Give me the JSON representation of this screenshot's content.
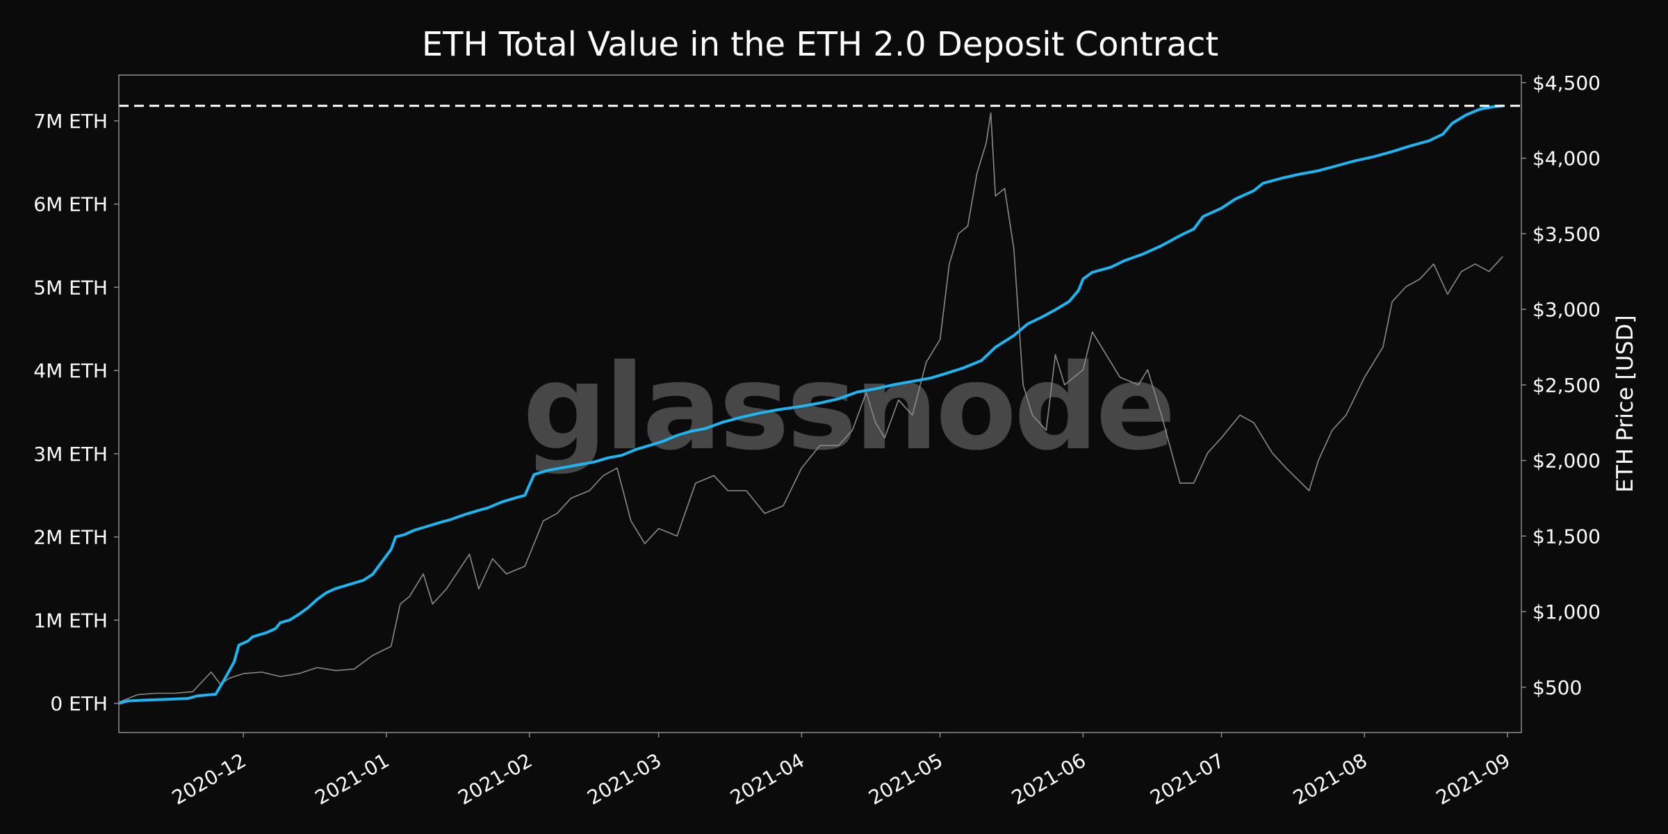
{
  "chart_data": {
    "type": "line",
    "title": "ETH Total Value in the ETH 2.0 Deposit Contract",
    "watermark": "glassnode",
    "x_ticks": [
      "2020-12",
      "2021-01",
      "2021-02",
      "2021-03",
      "2021-04",
      "2021-05",
      "2021-06",
      "2021-07",
      "2021-08",
      "2021-09"
    ],
    "xlim": [
      "2020-11-04",
      "2021-09-04"
    ],
    "y_left": {
      "label": "",
      "ticks": [
        0,
        1000000,
        2000000,
        3000000,
        4000000,
        5000000,
        6000000,
        7000000
      ],
      "tick_labels": [
        "0 ETH",
        "1M ETH",
        "2M ETH",
        "3M ETH",
        "4M ETH",
        "5M ETH",
        "6M ETH",
        "7M ETH"
      ],
      "ylim": [
        -350000,
        7550000
      ]
    },
    "y_right": {
      "label": "ETH Price [USD]",
      "ticks": [
        500,
        1000,
        1500,
        2000,
        2500,
        3000,
        3500,
        4000,
        4500
      ],
      "tick_labels": [
        "$500",
        "$1,000",
        "$1,500",
        "$2,000",
        "$2,500",
        "$3,000",
        "$3,500",
        "$4,000",
        "$4,500"
      ],
      "ylim": [
        200,
        4550
      ]
    },
    "ath_line": {
      "value": 7180000,
      "axis": "left",
      "style": "dashed"
    },
    "series": [
      {
        "axis": "left",
        "color": "#1fb5f0",
        "points": [
          [
            "2020-11-04",
            0
          ],
          [
            "2020-11-06",
            30000
          ],
          [
            "2020-11-10",
            40000
          ],
          [
            "2020-11-15",
            50000
          ],
          [
            "2020-11-19",
            60000
          ],
          [
            "2020-11-21",
            90000
          ],
          [
            "2020-11-25",
            110000
          ],
          [
            "2020-11-27",
            300000
          ],
          [
            "2020-11-29",
            500000
          ],
          [
            "2020-11-30",
            700000
          ],
          [
            "2020-12-02",
            750000
          ],
          [
            "2020-12-03",
            800000
          ],
          [
            "2020-12-06",
            850000
          ],
          [
            "2020-12-08",
            900000
          ],
          [
            "2020-12-09",
            970000
          ],
          [
            "2020-12-11",
            1000000
          ],
          [
            "2020-12-13",
            1070000
          ],
          [
            "2020-12-15",
            1150000
          ],
          [
            "2020-12-17",
            1250000
          ],
          [
            "2020-12-19",
            1330000
          ],
          [
            "2020-12-21",
            1380000
          ],
          [
            "2020-12-24",
            1430000
          ],
          [
            "2020-12-27",
            1480000
          ],
          [
            "2020-12-29",
            1550000
          ],
          [
            "2020-12-31",
            1700000
          ],
          [
            "2021-01-02",
            1850000
          ],
          [
            "2021-01-03",
            2000000
          ],
          [
            "2021-01-05",
            2030000
          ],
          [
            "2021-01-07",
            2080000
          ],
          [
            "2021-01-10",
            2130000
          ],
          [
            "2021-01-13",
            2180000
          ],
          [
            "2021-01-15",
            2210000
          ],
          [
            "2021-01-18",
            2270000
          ],
          [
            "2021-01-21",
            2320000
          ],
          [
            "2021-01-23",
            2350000
          ],
          [
            "2021-01-26",
            2420000
          ],
          [
            "2021-01-29",
            2470000
          ],
          [
            "2021-01-31",
            2500000
          ],
          [
            "2021-02-02",
            2750000
          ],
          [
            "2021-02-05",
            2800000
          ],
          [
            "2021-02-08",
            2830000
          ],
          [
            "2021-02-12",
            2870000
          ],
          [
            "2021-02-15",
            2900000
          ],
          [
            "2021-02-18",
            2950000
          ],
          [
            "2021-02-21",
            2980000
          ],
          [
            "2021-02-24",
            3050000
          ],
          [
            "2021-02-27",
            3100000
          ],
          [
            "2021-03-02",
            3150000
          ],
          [
            "2021-03-05",
            3220000
          ],
          [
            "2021-03-08",
            3270000
          ],
          [
            "2021-03-11",
            3300000
          ],
          [
            "2021-03-15",
            3380000
          ],
          [
            "2021-03-19",
            3440000
          ],
          [
            "2021-03-23",
            3490000
          ],
          [
            "2021-03-27",
            3530000
          ],
          [
            "2021-04-01",
            3570000
          ],
          [
            "2021-04-05",
            3610000
          ],
          [
            "2021-04-09",
            3660000
          ],
          [
            "2021-04-13",
            3740000
          ],
          [
            "2021-04-17",
            3780000
          ],
          [
            "2021-04-21",
            3830000
          ],
          [
            "2021-04-25",
            3870000
          ],
          [
            "2021-04-29",
            3910000
          ],
          [
            "2021-05-02",
            3960000
          ],
          [
            "2021-05-06",
            4030000
          ],
          [
            "2021-05-10",
            4120000
          ],
          [
            "2021-05-13",
            4280000
          ],
          [
            "2021-05-17",
            4420000
          ],
          [
            "2021-05-20",
            4560000
          ],
          [
            "2021-05-23",
            4640000
          ],
          [
            "2021-05-26",
            4730000
          ],
          [
            "2021-05-29",
            4830000
          ],
          [
            "2021-05-31",
            4960000
          ],
          [
            "2021-06-01",
            5100000
          ],
          [
            "2021-06-03",
            5180000
          ],
          [
            "2021-06-07",
            5240000
          ],
          [
            "2021-06-10",
            5320000
          ],
          [
            "2021-06-14",
            5400000
          ],
          [
            "2021-06-18",
            5500000
          ],
          [
            "2021-06-22",
            5620000
          ],
          [
            "2021-06-25",
            5700000
          ],
          [
            "2021-06-27",
            5850000
          ],
          [
            "2021-07-01",
            5950000
          ],
          [
            "2021-07-04",
            6060000
          ],
          [
            "2021-07-08",
            6160000
          ],
          [
            "2021-07-10",
            6250000
          ],
          [
            "2021-07-14",
            6310000
          ],
          [
            "2021-07-18",
            6360000
          ],
          [
            "2021-07-22",
            6400000
          ],
          [
            "2021-07-26",
            6460000
          ],
          [
            "2021-07-30",
            6520000
          ],
          [
            "2021-08-03",
            6570000
          ],
          [
            "2021-08-07",
            6630000
          ],
          [
            "2021-08-11",
            6700000
          ],
          [
            "2021-08-15",
            6760000
          ],
          [
            "2021-08-18",
            6840000
          ],
          [
            "2021-08-20",
            6970000
          ],
          [
            "2021-08-23",
            7070000
          ],
          [
            "2021-08-26",
            7140000
          ],
          [
            "2021-08-29",
            7170000
          ],
          [
            "2021-08-31",
            7180000
          ]
        ]
      },
      {
        "axis": "right",
        "color": "#8a8a8a",
        "points": [
          [
            "2020-11-04",
            400
          ],
          [
            "2020-11-08",
            450
          ],
          [
            "2020-11-12",
            460
          ],
          [
            "2020-11-16",
            460
          ],
          [
            "2020-11-20",
            470
          ],
          [
            "2020-11-24",
            600
          ],
          [
            "2020-11-26",
            520
          ],
          [
            "2020-11-28",
            560
          ],
          [
            "2020-12-01",
            590
          ],
          [
            "2020-12-05",
            600
          ],
          [
            "2020-12-09",
            570
          ],
          [
            "2020-12-13",
            590
          ],
          [
            "2020-12-17",
            630
          ],
          [
            "2020-12-21",
            610
          ],
          [
            "2020-12-25",
            620
          ],
          [
            "2020-12-29",
            710
          ],
          [
            "2021-01-02",
            770
          ],
          [
            "2021-01-04",
            1050
          ],
          [
            "2021-01-06",
            1100
          ],
          [
            "2021-01-09",
            1250
          ],
          [
            "2021-01-11",
            1050
          ],
          [
            "2021-01-14",
            1150
          ],
          [
            "2021-01-19",
            1380
          ],
          [
            "2021-01-21",
            1150
          ],
          [
            "2021-01-24",
            1350
          ],
          [
            "2021-01-27",
            1250
          ],
          [
            "2021-01-31",
            1300
          ],
          [
            "2021-02-04",
            1600
          ],
          [
            "2021-02-07",
            1650
          ],
          [
            "2021-02-10",
            1750
          ],
          [
            "2021-02-14",
            1800
          ],
          [
            "2021-02-17",
            1900
          ],
          [
            "2021-02-20",
            1950
          ],
          [
            "2021-02-23",
            1600
          ],
          [
            "2021-02-26",
            1450
          ],
          [
            "2021-03-01",
            1550
          ],
          [
            "2021-03-05",
            1500
          ],
          [
            "2021-03-09",
            1850
          ],
          [
            "2021-03-13",
            1900
          ],
          [
            "2021-03-16",
            1800
          ],
          [
            "2021-03-20",
            1800
          ],
          [
            "2021-03-24",
            1650
          ],
          [
            "2021-03-28",
            1700
          ],
          [
            "2021-04-01",
            1950
          ],
          [
            "2021-04-05",
            2100
          ],
          [
            "2021-04-09",
            2100
          ],
          [
            "2021-04-12",
            2200
          ],
          [
            "2021-04-15",
            2450
          ],
          [
            "2021-04-17",
            2250
          ],
          [
            "2021-04-19",
            2150
          ],
          [
            "2021-04-22",
            2400
          ],
          [
            "2021-04-25",
            2300
          ],
          [
            "2021-04-28",
            2650
          ],
          [
            "2021-05-01",
            2800
          ],
          [
            "2021-05-03",
            3300
          ],
          [
            "2021-05-05",
            3500
          ],
          [
            "2021-05-07",
            3550
          ],
          [
            "2021-05-09",
            3900
          ],
          [
            "2021-05-11",
            4100
          ],
          [
            "2021-05-12",
            4300
          ],
          [
            "2021-05-13",
            3750
          ],
          [
            "2021-05-15",
            3800
          ],
          [
            "2021-05-17",
            3400
          ],
          [
            "2021-05-19",
            2500
          ],
          [
            "2021-05-21",
            2300
          ],
          [
            "2021-05-24",
            2200
          ],
          [
            "2021-05-26",
            2700
          ],
          [
            "2021-05-28",
            2500
          ],
          [
            "2021-06-01",
            2600
          ],
          [
            "2021-06-03",
            2850
          ],
          [
            "2021-06-06",
            2700
          ],
          [
            "2021-06-09",
            2550
          ],
          [
            "2021-06-13",
            2500
          ],
          [
            "2021-06-15",
            2600
          ],
          [
            "2021-06-18",
            2300
          ],
          [
            "2021-06-22",
            1850
          ],
          [
            "2021-06-25",
            1850
          ],
          [
            "2021-06-28",
            2050
          ],
          [
            "2021-07-01",
            2150
          ],
          [
            "2021-07-05",
            2300
          ],
          [
            "2021-07-08",
            2250
          ],
          [
            "2021-07-12",
            2050
          ],
          [
            "2021-07-15",
            1950
          ],
          [
            "2021-07-20",
            1800
          ],
          [
            "2021-07-22",
            2000
          ],
          [
            "2021-07-25",
            2200
          ],
          [
            "2021-07-28",
            2300
          ],
          [
            "2021-08-01",
            2550
          ],
          [
            "2021-08-05",
            2750
          ],
          [
            "2021-08-07",
            3050
          ],
          [
            "2021-08-10",
            3150
          ],
          [
            "2021-08-13",
            3200
          ],
          [
            "2021-08-16",
            3300
          ],
          [
            "2021-08-19",
            3100
          ],
          [
            "2021-08-22",
            3250
          ],
          [
            "2021-08-25",
            3300
          ],
          [
            "2021-08-28",
            3250
          ],
          [
            "2021-08-31",
            3350
          ]
        ]
      }
    ]
  }
}
